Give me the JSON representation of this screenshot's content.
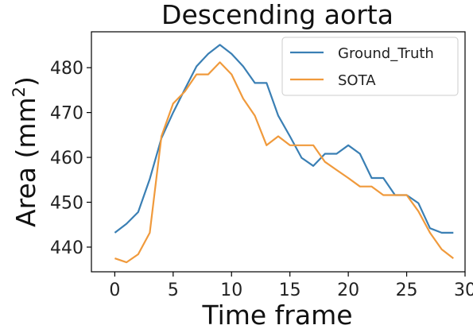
{
  "chart_data": {
    "type": "line",
    "title": "Descending aorta",
    "xlabel": "Time frame",
    "ylabel": "Area (mm",
    "ylabel_sup": "2",
    "ylabel_close": ")",
    "xlim": [
      -2,
      30
    ],
    "ylim": [
      434.5,
      488
    ],
    "xticks": [
      0,
      5,
      10,
      15,
      20,
      25,
      30
    ],
    "yticks": [
      440,
      450,
      460,
      470,
      480
    ],
    "legend_position": "top-right",
    "x": [
      0,
      1,
      2,
      3,
      4,
      5,
      6,
      7,
      8,
      9,
      10,
      11,
      12,
      13,
      14,
      15,
      16,
      17,
      18,
      19,
      20,
      21,
      22,
      23,
      24,
      25,
      26,
      27,
      28,
      29
    ],
    "series": [
      {
        "name": "Ground_Truth",
        "color": "#3a7fb4",
        "values": [
          443.2,
          445.2,
          447.8,
          455.2,
          464.3,
          470.0,
          475.2,
          480.3,
          483.1,
          485.1,
          483.1,
          480.3,
          476.6,
          476.6,
          469.3,
          464.7,
          459.9,
          458.1,
          460.8,
          460.8,
          462.7,
          460.8,
          455.4,
          455.4,
          451.6,
          451.6,
          449.8,
          444.2,
          443.2,
          443.2
        ]
      },
      {
        "name": "SOTA",
        "color": "#f09a3c",
        "values": [
          437.5,
          436.6,
          438.4,
          443.2,
          464.7,
          472.0,
          474.7,
          478.5,
          478.5,
          481.2,
          478.5,
          473.1,
          469.3,
          462.7,
          464.7,
          462.7,
          462.7,
          462.7,
          459.0,
          457.2,
          455.4,
          453.5,
          453.5,
          451.6,
          451.6,
          451.6,
          448.0,
          443.2,
          439.5,
          437.5
        ]
      }
    ]
  }
}
